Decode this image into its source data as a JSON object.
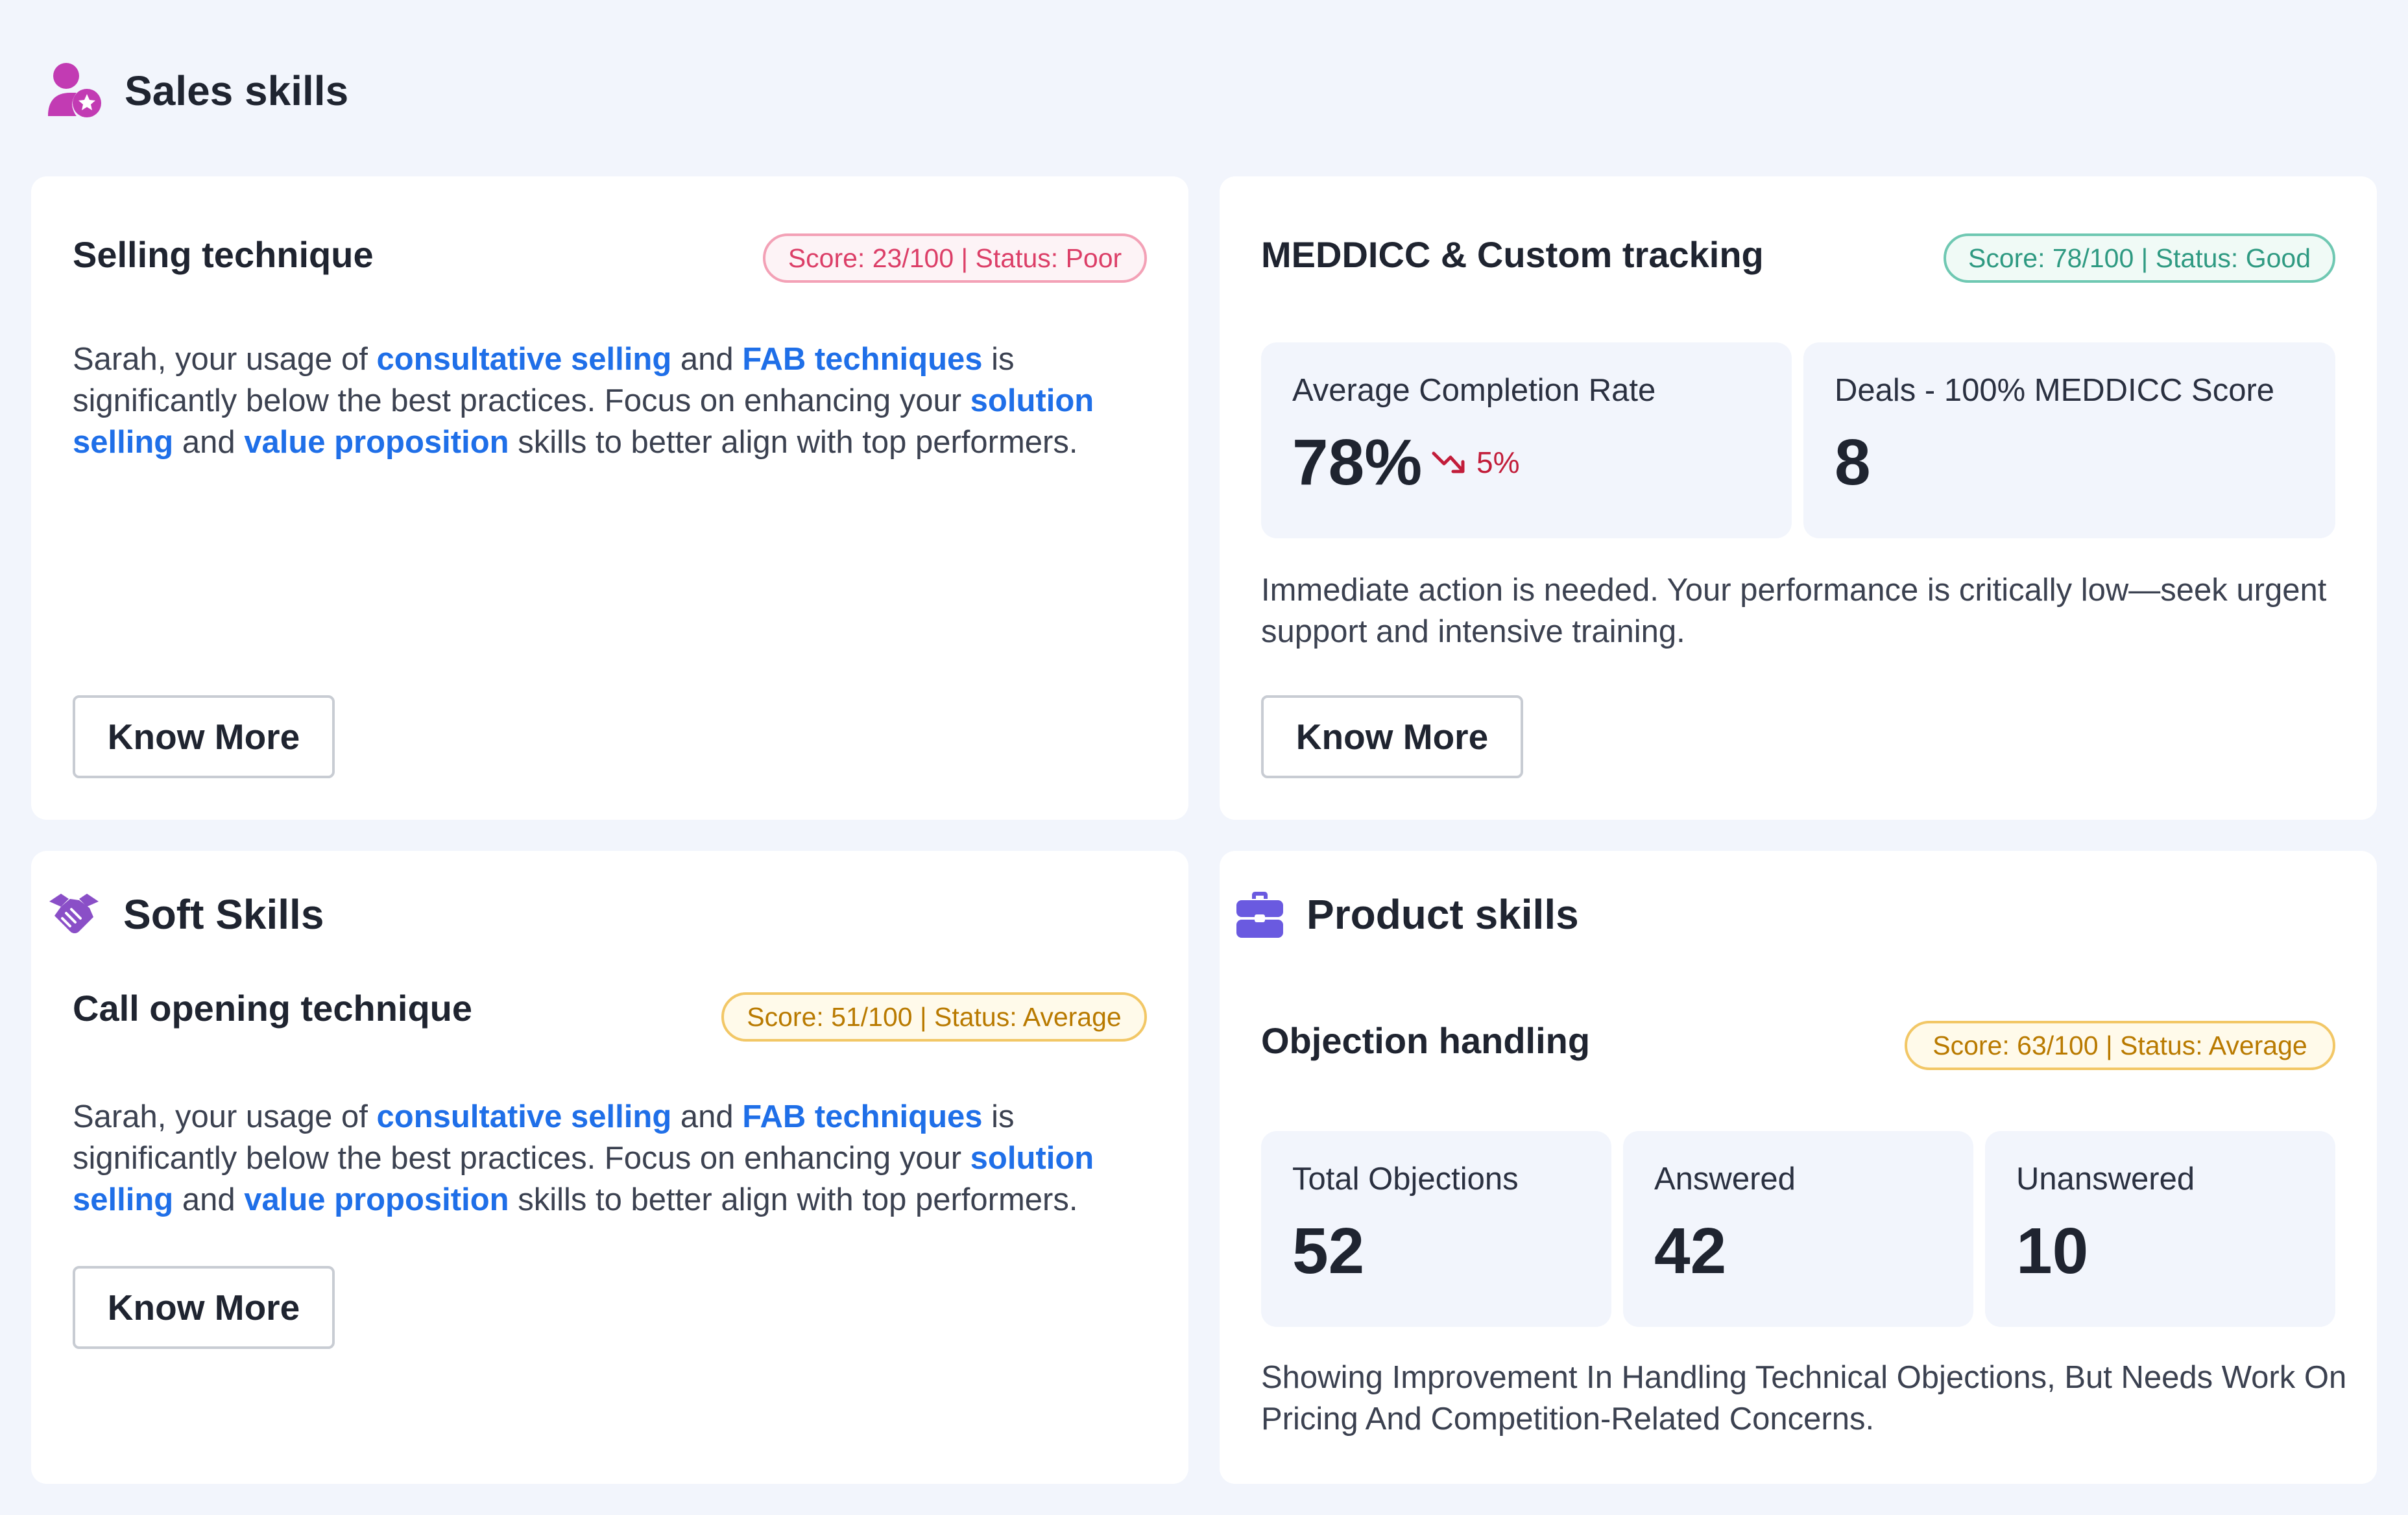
{
  "sales_skills": {
    "title": "Sales skills",
    "icon": "user-star-icon",
    "accent": "#c23bb3"
  },
  "selling_technique": {
    "title": "Selling technique",
    "badge": "Score: 23/100 | Status: Poor",
    "para": {
      "t1": "Sarah, your usage of ",
      "h1": "consultative selling",
      "t2": " and ",
      "h2": "FAB techniques",
      "t3": " is significantly below the best practices. Focus on enhancing your ",
      "h3": "solution selling",
      "t4": " and ",
      "h4": "value proposition",
      "t5": " skills to better align with top performers."
    },
    "button": "Know More"
  },
  "meddicc": {
    "title": "MEDDICC & Custom tracking",
    "badge": "Score: 78/100 | Status: Good",
    "stats": [
      {
        "label": "Average Completion Rate",
        "value": "78%",
        "trend": "5%",
        "trend_icon": "trend-down-icon"
      },
      {
        "label": "Deals - 100% MEDDICC Score",
        "value": "8"
      }
    ],
    "message": "Immediate action is needed. Your performance is critically low—seek urgent support and intensive training.",
    "button": "Know More"
  },
  "soft_skills": {
    "title": "Soft Skills",
    "icon": "handshake-icon",
    "accent": "#8a4fc7",
    "subtitle": "Call opening technique",
    "badge": "Score: 51/100 | Status: Average",
    "para": {
      "t1": "Sarah, your usage of ",
      "h1": "consultative selling",
      "t2": " and ",
      "h2": "FAB techniques",
      "t3": " is significantly below the best practices. Focus on enhancing your ",
      "h3": "solution selling",
      "t4": " and ",
      "h4": "value proposition",
      "t5": " skills to better align with top performers."
    },
    "button": "Know More"
  },
  "product_skills": {
    "title": "Product skills",
    "icon": "briefcase-icon",
    "accent": "#6a5ae0",
    "subtitle": "Objection handling",
    "badge": "Score: 63/100 | Status: Average",
    "stats": [
      {
        "label": "Total Objections",
        "value": "52"
      },
      {
        "label": "Answered",
        "value": "42"
      },
      {
        "label": "Unanswered",
        "value": "10"
      }
    ],
    "message": "Showing Improvement In Handling Technical Objections, But Needs Work On Pricing And Competition-Related Concerns."
  }
}
